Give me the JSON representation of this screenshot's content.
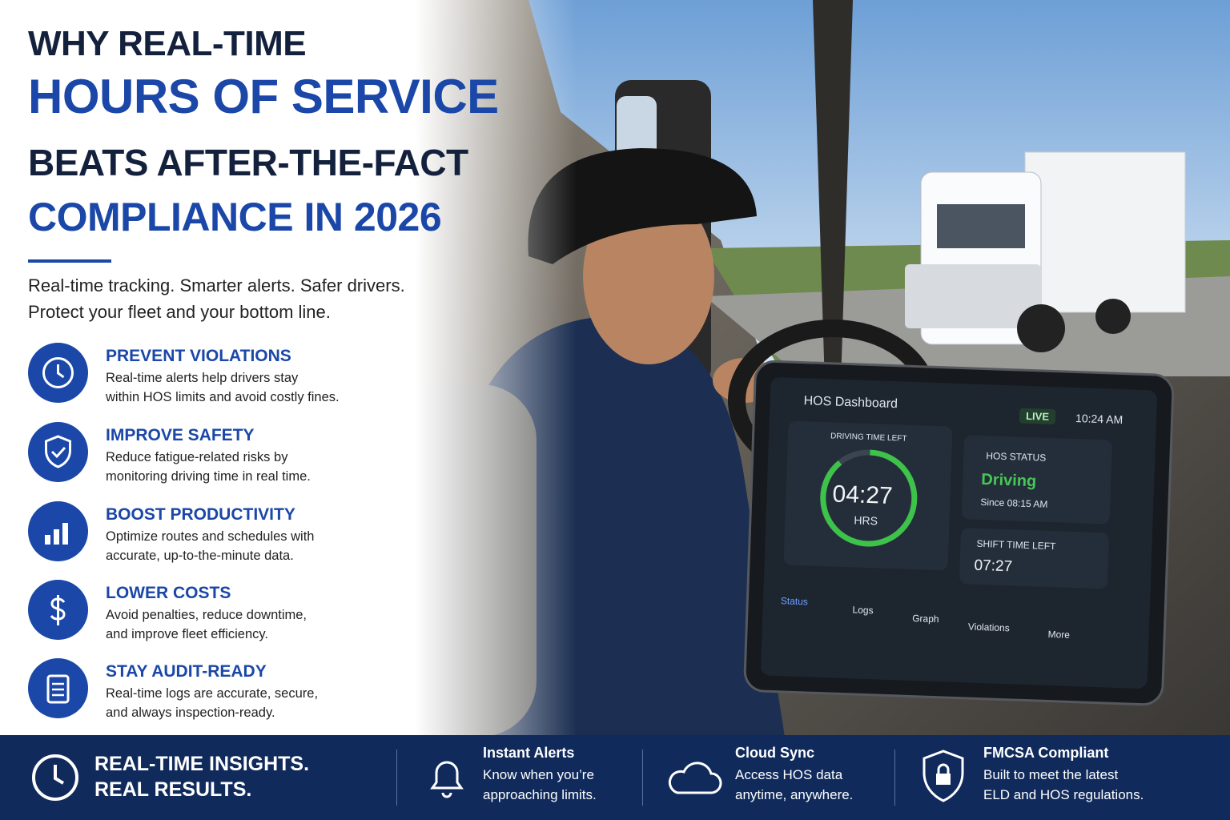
{
  "header": {
    "title_lines": [
      "WHY REAL-TIME",
      "HOURS OF SERVICE",
      "BEATS AFTER-THE-FACT",
      "COMPLIANCE IN 2026"
    ],
    "subtitle_lines": [
      "Real-time tracking. Smarter alerts. Safer drivers.",
      "Protect your fleet and your bottom line."
    ]
  },
  "features": [
    {
      "title": "PREVENT VIOLATIONS",
      "lines": [
        "Real-time alerts help drivers stay",
        "within HOS limits and avoid costly fines."
      ]
    },
    {
      "title": "IMPROVE SAFETY",
      "lines": [
        "Reduce fatigue-related risks by",
        "monitoring driving time in real time."
      ]
    },
    {
      "title": "BOOST PRODUCTIVITY",
      "lines": [
        "Optimize routes and schedules with",
        "accurate, up-to-the-minute data."
      ]
    },
    {
      "title": "LOWER COSTS",
      "lines": [
        "Avoid penalties, reduce downtime,",
        "and improve fleet efficiency."
      ]
    },
    {
      "title": "STAY AUDIT-READY",
      "lines": [
        "Real-time logs are accurate, secure,",
        "and always inspection-ready."
      ]
    }
  ],
  "dashboard": {
    "title": "HOS Dashboard",
    "live": "LIVE",
    "time": "10:24 AM",
    "driving_label": "DRIVING TIME LEFT",
    "driving_value": "04:27",
    "driving_unit": "HRS",
    "status_label": "HOS STATUS",
    "status": "Driving",
    "since": "Since 08:15 AM",
    "shift_label": "SHIFT TIME LEFT",
    "shift_value": "07:27",
    "nav": [
      "Status",
      "Logs",
      "Graph",
      "Violations",
      "More"
    ]
  },
  "footer": {
    "tagline_lines": [
      "REAL-TIME INSIGHTS.",
      "REAL RESULTS."
    ],
    "items": [
      {
        "title": "Instant Alerts",
        "lines": [
          "Know when you’re",
          "approaching limits."
        ]
      },
      {
        "title": "Cloud Sync",
        "lines": [
          "Access HOS data",
          "anytime, anywhere."
        ]
      },
      {
        "title": "FMCSA Compliant",
        "lines": [
          "Built to meet the latest",
          "ELD and HOS regulations."
        ]
      }
    ]
  }
}
